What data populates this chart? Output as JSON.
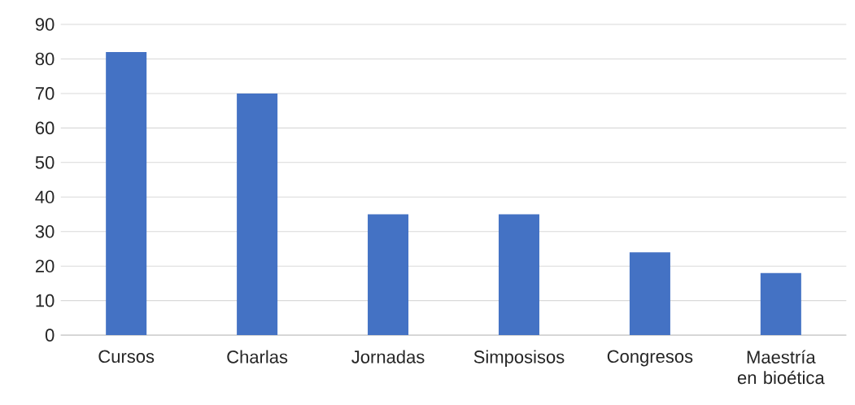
{
  "chart_data": {
    "type": "bar",
    "categories": [
      "Cursos",
      "Charlas",
      "Jornadas",
      "Simposisos",
      "Congresos",
      "Maestría en bioética"
    ],
    "values": [
      82,
      70,
      35,
      35,
      24,
      18
    ],
    "color": "#4472c4",
    "ylim": [
      0,
      90
    ],
    "yticks": [
      0,
      10,
      20,
      30,
      40,
      50,
      60,
      70,
      80,
      90
    ],
    "grid": "y"
  }
}
